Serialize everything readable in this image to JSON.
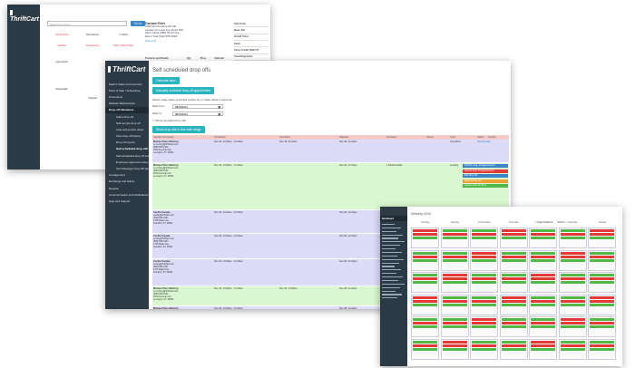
{
  "brand": {
    "name": "ThriftCart",
    "colors": {
      "sidebar": "#2c3a46",
      "teal": "#2bb3c0",
      "blue": "#3a86c8",
      "purple_row": "#dcdcf8",
      "green_row": "#d9f7d0",
      "red": "#e03a3a",
      "orange": "#f0a030",
      "success": "#52b848"
    }
  },
  "back_window": {
    "search_placeholder": "Search by phone",
    "go_button": "Go to",
    "donor": {
      "name": "Donna Fish",
      "lines": [
        "1000 Summertime Rd SE",
        "Lashes On Lash Ave, Suite 600",
        "Main Cards (585) 55 Ad Ave",
        "Event Trail (Fall) 555-0000"
      ],
      "tag": "Pick only"
    },
    "totals": [
      {
        "label": "Sub Total",
        "value": ""
      },
      {
        "label": "Base Tax",
        "value": ""
      },
      {
        "label": "Grand Total",
        "value": ""
      },
      {
        "label": "Cash",
        "value": ""
      },
      {
        "label": "Store Credit (582.77)",
        "value": ""
      },
      {
        "label": "Total Payments",
        "value": ""
      }
    ],
    "table_headers": [
      "Products and Details",
      "Qty",
      "Price",
      "Subtotal"
    ],
    "products": [
      {
        "name": "Blue Suede Shirt",
        "detail": "Blue Suede (Size: 699 US)",
        "qty": "1",
        "price": "$7.98",
        "subtotal": "$7.98"
      },
      {
        "name": "Ferrari Shoes",
        "detail": "",
        "qty": "1",
        "price": "$7.98",
        "subtotal": "$7.98"
      }
    ],
    "board_labels": [
      "Out of Stock",
      "Slow Moves",
      "In Stock",
      "Awaited",
      "Consignment",
      "Open Order Pickup",
      "Aged Stock",
      "Receivable",
      "Shipped",
      "Special Order Item"
    ]
  },
  "main_window": {
    "title": "Self scheduled drop offs",
    "calendar_button": "Calendar view",
    "schedule_button": "Manually schedule drop-off appointment",
    "range_hint": "Select range dates you'd like to filter by, or leave blank to show all",
    "from_label": "Date from:",
    "from_value": "08/18/2021",
    "to_label": "Date to:",
    "to_value": "08/31/2021",
    "show_cancelled": "Show cancelled drop offs",
    "filter_button": "Show drop offs in this date range",
    "nav": [
      {
        "label": "Search Sales and Inventory",
        "sub": false,
        "active": false
      },
      {
        "label": "Point of Sale / Scheduling",
        "sub": false,
        "active": false
      },
      {
        "label": "Promotions",
        "sub": false,
        "active": false
      },
      {
        "label": "Website Maintenance",
        "sub": false,
        "active": false
      },
      {
        "label": "Drop-off Allowance",
        "sub": false,
        "active": true
      },
      {
        "label": "Add a drop off",
        "sub": true,
        "active": false
      },
      {
        "label": "Self-service drop off",
        "sub": true,
        "active": false
      },
      {
        "label": "Lists self-service drops",
        "sub": true,
        "active": false
      },
      {
        "label": "View drop off history",
        "sub": true,
        "active": false
      },
      {
        "label": "Drop off reports",
        "sub": true,
        "active": false
      },
      {
        "label": "Self-scheduled drop offs",
        "sub": true,
        "active": true
      },
      {
        "label": "Self-scheduled drop off settings",
        "sub": true,
        "active": false
      },
      {
        "label": "Employee approved codes",
        "sub": true,
        "active": false
      },
      {
        "label": "Text Message Drop-Off Settings",
        "sub": true,
        "active": false
      },
      {
        "label": "Consignment",
        "sub": false,
        "active": false
      },
      {
        "label": "Exchange and Admin",
        "sub": false,
        "active": false
      },
      {
        "label": "Reports",
        "sub": false,
        "active": false
      },
      {
        "label": "Communication and Notifications",
        "sub": false,
        "active": false
      },
      {
        "label": "Help and Support",
        "sub": false,
        "active": false
      }
    ],
    "columns": [
      "Contact Information",
      "Scheduled",
      "Cancelled",
      "Rejected",
      "Accepted",
      "Pieces",
      "Items",
      "Status",
      "Actions"
    ],
    "rows": [
      {
        "color": "purple",
        "contact": [
          "Michael Peter Mehring",
          "m.mehring@thriftcart.com",
          "(508) 555-0142",
          "2540 Freeman Rd",
          "Lexington, KY 40506"
        ],
        "scheduled": "Nov 20, 10:00am - 11:00am",
        "cancelled": "Nov 28, 11:22am",
        "rejected": "Nov 28, 11:22am",
        "accepted": "",
        "pieces": "",
        "items": "Unverified",
        "status": "View Review",
        "actions": []
      },
      {
        "color": "green",
        "contact": [
          "Michael Peter Mehring",
          "m.mehring@thriftcart.com",
          "(508) 555-0142",
          "2540 Freeman Rd",
          "Lexington, KY 40506"
        ],
        "scheduled": "Nov 20, 10:00am - 11:00am",
        "cancelled": "",
        "rejected": "Nov 03, 12:22pm",
        "accepted": "1 Dishonorable",
        "pieces": "",
        "items": "pending",
        "status": "View Review",
        "actions": [
          {
            "label": "Confirm drop off appointment",
            "color": "blue"
          },
          {
            "label": "Cancel drop off appointment",
            "color": "red"
          },
          {
            "label": "Edit drop off",
            "color": "blue"
          },
          {
            "label": "Missing drop off",
            "color": "orange"
          },
          {
            "label": "Accept drop off items",
            "color": "green"
          }
        ]
      },
      {
        "color": "purple",
        "contact": [
          "Cecilie Koepke",
          "cecilie@thriftcart.com",
          "(508) 555-0187",
          "1725 Maple Ave",
          "Frankfort, KY 40601"
        ],
        "scheduled": "Nov 20, 10:00am - 11:00am",
        "cancelled": "",
        "rejected": "Nov 03, 12:22pm",
        "accepted": "1 Dishonorable",
        "pieces": "",
        "items": "Confirmed",
        "status": "View Review",
        "actions": [
          {
            "label": "Cancel drop off appointment",
            "color": "red"
          },
          {
            "label": "Edit drop off",
            "color": "blue"
          }
        ]
      },
      {
        "color": "purple",
        "contact": [
          "Cecilie Koepke",
          "cecilie@thriftcart.com",
          "(508) 555-0187",
          "1725 Maple Ave",
          "Frankfort, KY 40601"
        ],
        "scheduled": "Nov 20, 10:00am - 11:00am",
        "cancelled": "",
        "rejected": "Nov 03, 12:22pm",
        "accepted": "1 Dishonorable",
        "pieces": "",
        "items": "Pending",
        "status": "View Review",
        "actions": []
      },
      {
        "color": "purple",
        "contact": [
          "Cecilie Koepke",
          "cecilie@thriftcart.com",
          "(508) 555-0187",
          "1725 Maple Ave",
          "Frankfort, KY 40601"
        ],
        "scheduled": "Nov 20, 10:00am - 11:00am",
        "cancelled": "",
        "rejected": "Nov 03, 12:22pm",
        "accepted": "",
        "pieces": "",
        "items": "",
        "status": "",
        "actions": []
      },
      {
        "color": "green",
        "contact": [
          "Michael Peter Mehring",
          "m.mehring@thriftcart.com",
          "(508) 555-0142",
          "2540 Freeman Rd",
          "Lexington, KY 40506"
        ],
        "scheduled": "Nov 20, 10:00am - 11:00am",
        "cancelled": "Nov 20, 10:00am",
        "rejected": "Nov 28, 11:22am",
        "accepted": "",
        "pieces": "",
        "items": "",
        "status": "",
        "actions": []
      },
      {
        "color": "purple",
        "contact": [
          "Michael Peter Mehring",
          "m.mehring@thriftcart.com",
          "(508) 555-0142",
          "2540 Freeman Rd",
          "Lexington, KY 40506"
        ],
        "scheduled": "Nov 20, 10:00am - 11:00am",
        "cancelled": "",
        "rejected": "Nov 28, 11:22am",
        "accepted": "",
        "pieces": "",
        "items": "",
        "status": "",
        "actions": []
      }
    ]
  },
  "front_window": {
    "title": "Weekly Grid",
    "nav_label": "Dashboard",
    "controls": [
      "< Aug",
      "Week",
      "Month >"
    ],
    "days": [
      "Monday",
      "Tuesday",
      "Wednesday",
      "Thursday",
      "Friday",
      "Saturday",
      "Sunday"
    ]
  }
}
